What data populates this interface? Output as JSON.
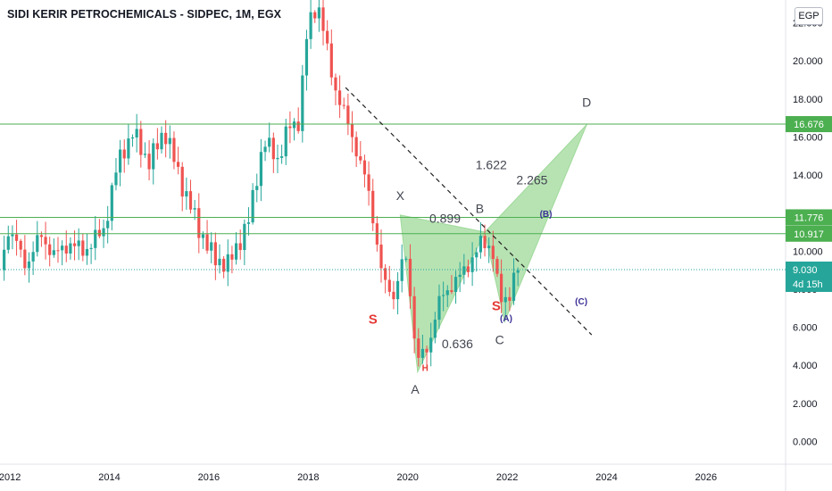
{
  "header": {
    "title": "SIDI KERIR PETROCHEMICALS - SIDPEC, 1M, EGX",
    "currency": "EGP"
  },
  "chart_data": {
    "type": "candlestick",
    "title": "SIDI KERIR PETROCHEMICALS - SIDPEC, 1M, EGX",
    "ylim": [
      -1.2,
      23.2
    ],
    "xlim": [
      2011.8,
      2027.6
    ],
    "y_ticks": [
      "0.000",
      "2.000",
      "4.000",
      "6.000",
      "8.000",
      "10.000",
      "12.000",
      "14.000",
      "16.000",
      "18.000",
      "20.000",
      "22.000"
    ],
    "x_ticks": [
      "2012",
      "2014",
      "2016",
      "2018",
      "2020",
      "2022",
      "2024",
      "2026"
    ],
    "colors": {
      "up": "#26a69a",
      "down": "#ef5350",
      "level": "#4caf50",
      "pattern": "#9fd99a",
      "price_line": "#26a69a",
      "trendline": "#222222",
      "wave": "#3b3196",
      "pivot": "#e53935",
      "annotation": "#434651"
    },
    "price_series_anchors": [
      [
        2011.8,
        9.0
      ],
      [
        2012.0,
        11.4
      ],
      [
        2012.3,
        9.2
      ],
      [
        2012.6,
        10.8
      ],
      [
        2012.9,
        9.8
      ],
      [
        2013.2,
        10.4
      ],
      [
        2013.5,
        10.0
      ],
      [
        2013.9,
        11.2
      ],
      [
        2014.2,
        15.0
      ],
      [
        2014.5,
        16.2
      ],
      [
        2014.8,
        14.6
      ],
      [
        2015.1,
        16.4
      ],
      [
        2015.5,
        13.2
      ],
      [
        2015.8,
        11.2
      ],
      [
        2016.1,
        9.6
      ],
      [
        2016.4,
        9.3
      ],
      [
        2016.8,
        11.6
      ],
      [
        2017.1,
        15.8
      ],
      [
        2017.4,
        14.8
      ],
      [
        2017.6,
        16.5
      ],
      [
        2017.8,
        16.8
      ],
      [
        2018.0,
        22.0
      ],
      [
        2018.2,
        23.0
      ],
      [
        2018.5,
        18.9
      ],
      [
        2018.9,
        15.9
      ],
      [
        2019.2,
        13.3
      ],
      [
        2019.35,
        11.0
      ],
      [
        2019.5,
        8.4
      ],
      [
        2019.75,
        7.6
      ],
      [
        2019.85,
        9.3
      ],
      [
        2020.0,
        9.5
      ],
      [
        2020.1,
        6.2
      ],
      [
        2020.2,
        4.3
      ],
      [
        2020.4,
        4.8
      ],
      [
        2020.6,
        7.2
      ],
      [
        2020.9,
        8.3
      ],
      [
        2021.1,
        8.8
      ],
      [
        2021.5,
        10.5
      ],
      [
        2021.7,
        10.2
      ],
      [
        2021.85,
        7.4
      ],
      [
        2022.0,
        7.5
      ],
      [
        2022.2,
        9.03
      ]
    ],
    "horizontal_levels": [
      {
        "value": 16.676,
        "label": "16.676"
      },
      {
        "value": 11.776,
        "label": "11.776"
      },
      {
        "value": 10.917,
        "label": "10.917"
      }
    ],
    "current_price": {
      "value": 9.03,
      "label": "9.030",
      "countdown": "4d 15h"
    },
    "trendline": {
      "from": [
        2018.75,
        18.6
      ],
      "to": [
        2023.7,
        5.6
      ]
    },
    "harmonic_pattern": {
      "points": [
        {
          "name": "X",
          "x": 2019.85,
          "y": 11.9
        },
        {
          "name": "A",
          "x": 2020.2,
          "y": 3.65
        },
        {
          "name": "B",
          "x": 2021.55,
          "y": 11.0
        },
        {
          "name": "C",
          "x": 2021.95,
          "y": 6.3
        },
        {
          "name": "D",
          "x": 2023.6,
          "y": 16.65
        }
      ],
      "ratios": [
        {
          "label": "0.899",
          "x": 2020.75,
          "y": 11.5
        },
        {
          "label": "0.636",
          "x": 2021.0,
          "y": 4.9
        },
        {
          "label": "1.622",
          "x": 2021.68,
          "y": 14.3
        },
        {
          "label": "2.265",
          "x": 2022.5,
          "y": 13.5
        }
      ]
    },
    "labels": [
      {
        "text": "X",
        "x": 2019.85,
        "y": 12.7,
        "kind": "point"
      },
      {
        "text": "B",
        "x": 2021.45,
        "y": 12.0,
        "kind": "point"
      },
      {
        "text": "D",
        "x": 2023.6,
        "y": 17.6,
        "kind": "point"
      },
      {
        "text": "A",
        "x": 2020.15,
        "y": 2.5,
        "kind": "point"
      },
      {
        "text": "C",
        "x": 2021.85,
        "y": 5.1,
        "kind": "point"
      },
      {
        "text": "S",
        "x": 2019.3,
        "y": 6.2,
        "kind": "pivot"
      },
      {
        "text": "S",
        "x": 2021.78,
        "y": 6.9,
        "kind": "pivot"
      },
      {
        "text": "H",
        "x": 2020.35,
        "y": 3.7,
        "kind": "pivot-small"
      },
      {
        "text": "(A)",
        "x": 2021.98,
        "y": 6.3,
        "kind": "wave"
      },
      {
        "text": "(B)",
        "x": 2022.78,
        "y": 11.8,
        "kind": "wave"
      },
      {
        "text": "(C)",
        "x": 2023.49,
        "y": 7.2,
        "kind": "wave"
      }
    ]
  }
}
